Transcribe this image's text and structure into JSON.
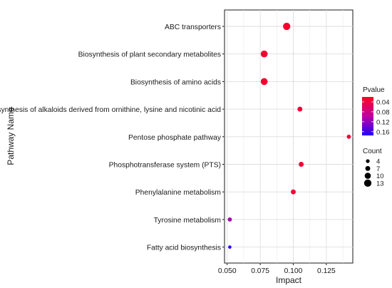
{
  "chart_data": {
    "type": "scatter",
    "xlabel": "Impact",
    "ylabel": "Pathway Name",
    "xlim": [
      0.048,
      0.145
    ],
    "x_ticks": [
      0.05,
      0.075,
      0.1,
      0.125
    ],
    "x_tick_labels": [
      "0.050",
      "0.075",
      "0.100",
      "0.125"
    ],
    "grid": true,
    "legend_position": "right",
    "categories": [
      "ABC transporters",
      "Biosynthesis of plant secondary metabolites",
      "Biosynthesis of amino acids",
      "Biosynthesis of alkaloids derived from ornithine, lysine and nicotinic acid",
      "Pentose phosphate pathway",
      "Phosphotransferase system (PTS)",
      "Phenylalanine metabolism",
      "Tyrosine metabolism",
      "Fatty acid biosynthesis"
    ],
    "points": [
      {
        "pathway": "ABC transporters",
        "impact": 0.095,
        "pvalue": 0.03,
        "count": 13
      },
      {
        "pathway": "Biosynthesis of plant secondary metabolites",
        "impact": 0.078,
        "pvalue": 0.03,
        "count": 12
      },
      {
        "pathway": "Biosynthesis of amino acids",
        "impact": 0.078,
        "pvalue": 0.03,
        "count": 12
      },
      {
        "pathway": "Biosynthesis of alkaloids derived from ornithine, lysine and nicotinic acid",
        "impact": 0.105,
        "pvalue": 0.035,
        "count": 7
      },
      {
        "pathway": "Pentose phosphate pathway",
        "impact": 0.142,
        "pvalue": 0.035,
        "count": 5
      },
      {
        "pathway": "Phosphotransferase system (PTS)",
        "impact": 0.106,
        "pvalue": 0.035,
        "count": 7
      },
      {
        "pathway": "Phenylalanine metabolism",
        "impact": 0.1,
        "pvalue": 0.035,
        "count": 7
      },
      {
        "pathway": "Tyrosine metabolism",
        "impact": 0.052,
        "pvalue": 0.11,
        "count": 5
      },
      {
        "pathway": "Fatty acid biosynthesis",
        "impact": 0.052,
        "pvalue": 0.17,
        "count": 3
      }
    ],
    "color_legend": {
      "title": "Pvalue",
      "breaks": [
        0.04,
        0.08,
        0.12,
        0.16
      ],
      "labels": [
        "0.04",
        "0.08",
        "0.12",
        "0.16"
      ],
      "range": [
        0.02,
        0.175
      ],
      "low_color": "#ff0000",
      "high_color": "#0000ff"
    },
    "size_legend": {
      "title": "Count",
      "breaks": [
        4,
        7,
        10,
        13
      ],
      "labels": [
        "4",
        "7",
        "10",
        "13"
      ]
    }
  }
}
